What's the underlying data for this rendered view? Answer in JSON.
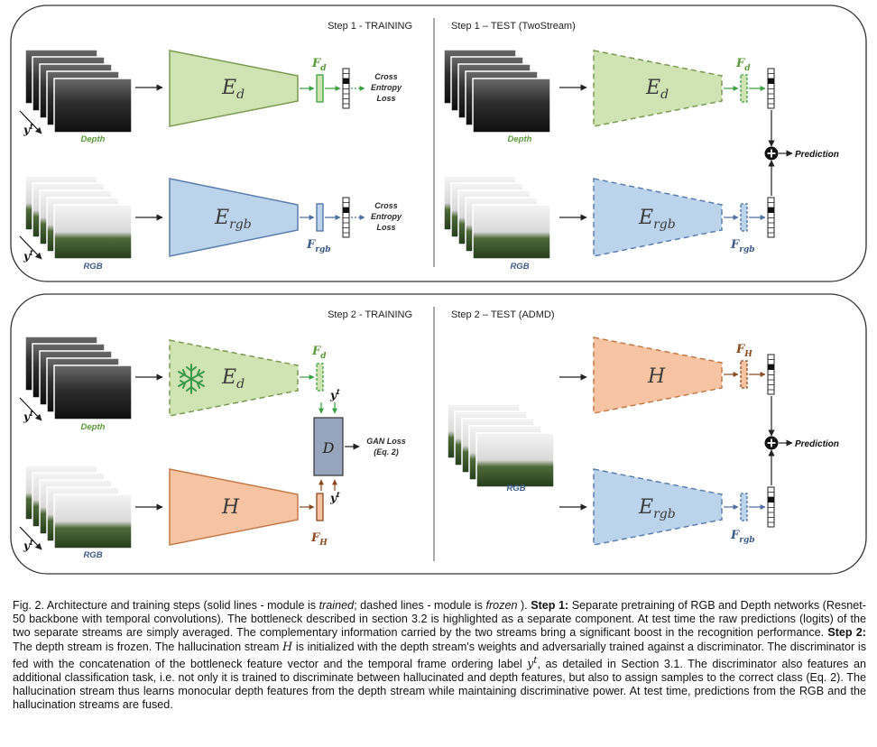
{
  "panel1": {
    "left_title": "Step 1 - TRAINING",
    "right_title": "Step 1 – TEST (TwoStream)"
  },
  "panel2": {
    "left_title": "Step 2 - TRAINING",
    "right_title": "Step 2 – TEST (ADMD)"
  },
  "labels": {
    "depth": "Depth",
    "rgb": "RGB",
    "y_main": "y",
    "y_sup": "t",
    "E": "E",
    "E_sub_d": "d",
    "E_sub_rgb": "rgb",
    "H": "H",
    "D": "D",
    "F": "F",
    "F_sub_d": "d",
    "F_sub_rgb": "rgb",
    "F_sub_H": "H",
    "loss_line1": "Cross",
    "loss_line2": "Entropy",
    "loss_line3": "Loss",
    "gan_line1": "GAN Loss",
    "gan_line2": "(Eq. 2)",
    "prediction": "Prediction"
  },
  "colors": {
    "green_fill": "#cfe3b3",
    "green_stroke": "#7a9a50",
    "green_accent": "#3aa040",
    "green_text": "#5a9a38",
    "blue_fill": "#bcd3ec",
    "blue_stroke": "#5a7fae",
    "blue_text": "#3b5a88",
    "orange_fill": "#f6c4a2",
    "orange_stroke": "#c47a48",
    "orange_text": "#8a4a20",
    "discriminator_fill": "#98a6bd"
  },
  "caption": {
    "fig": "Fig. 2. Architecture and training steps (solid lines - module is ",
    "trained": "trained",
    "mid1": "; dashed lines - module is ",
    "frozen": "frozen",
    "mid2": " ). ",
    "step1_label": "Step 1:",
    "step1_text": " Separate pretraining of RGB and Depth networks (Resnet-50 backbone with temporal convolutions). The bottleneck described in section 3.2 is highlighted as a separate component. At test time the raw predictions (logits) of the two separate streams are simply averaged. The complementary information carried by the two streams bring a significant boost in the recognition performance. ",
    "step2_label": "Step 2:",
    "step2_text_a": " The depth stream is frozen. The hallucination stream ",
    "step2_H": "H",
    "step2_text_b": " is initialized with the depth stream's weights and adversarially trained against a discriminator. The discriminator is fed with the concatenation of the bottleneck feature vector and the temporal frame ordering label ",
    "step2_y": "y",
    "step2_ysup": "t",
    "step2_text_c": ", as detailed in Section 3.1. The discriminator also features an additional classification task, i.e. not only it is trained to discriminate between hallucinated and depth features, but also to assign samples to the correct class (Eq. 2). The hallucination stream thus learns monocular depth features from the depth stream while maintaining discriminative power. At test time, predictions from the RGB and the hallucination streams are fused."
  }
}
